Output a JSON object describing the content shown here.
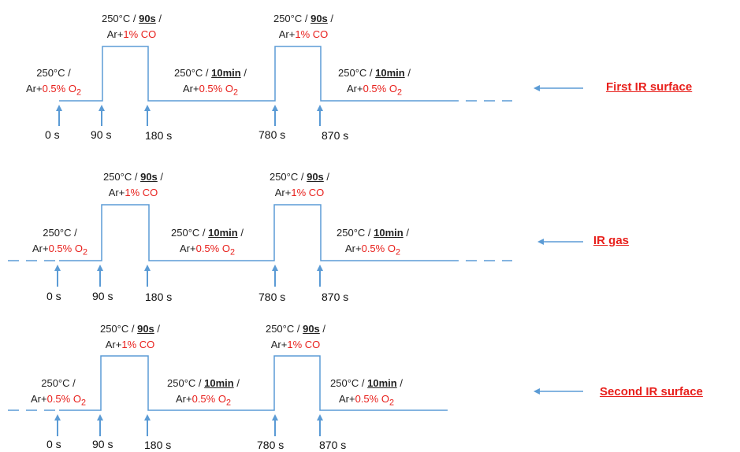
{
  "colors": {
    "line": "#5b9bd5",
    "red": "#e8201c",
    "text": "#222222"
  },
  "panels": [
    {
      "title": "First IR surface",
      "times": [
        "0 s",
        "90 s",
        "180 s",
        "780 s",
        "870 s"
      ],
      "steps": [
        {
          "l1a": "250°C /",
          "l1b": "",
          "l1c": "",
          "l2a": "Ar+",
          "l2b": "0.5% O",
          "sub": "2"
        },
        {
          "l1a": "250°C / ",
          "l1b": "90s",
          "l1c": " /",
          "l2a": "Ar+",
          "l2b": "1% CO",
          "sub": ""
        },
        {
          "l1a": "250°C / ",
          "l1b": "10min",
          "l1c": " /",
          "l2a": "Ar+",
          "l2b": "0.5% O",
          "sub": "2"
        },
        {
          "l1a": "250°C / ",
          "l1b": "90s",
          "l1c": " /",
          "l2a": "Ar+",
          "l2b": "1% CO",
          "sub": ""
        },
        {
          "l1a": "250°C / ",
          "l1b": "10min",
          "l1c": " /",
          "l2a": "Ar+",
          "l2b": "0.5% O",
          "sub": "2"
        }
      ]
    },
    {
      "title": "IR gas",
      "times": [
        "0 s",
        "90 s",
        "180 s",
        "780 s",
        "870 s"
      ],
      "steps": [
        {
          "l1a": "250°C /",
          "l1b": "",
          "l1c": "",
          "l2a": "Ar+",
          "l2b": "0.5% O",
          "sub": "2"
        },
        {
          "l1a": "250°C / ",
          "l1b": "90s",
          "l1c": " /",
          "l2a": "Ar+",
          "l2b": "1% CO",
          "sub": ""
        },
        {
          "l1a": "250°C / ",
          "l1b": "10min",
          "l1c": " /",
          "l2a": "Ar+",
          "l2b": "0.5% O",
          "sub": "2"
        },
        {
          "l1a": "250°C / ",
          "l1b": "90s",
          "l1c": " /",
          "l2a": "Ar+",
          "l2b": "1% CO",
          "sub": ""
        },
        {
          "l1a": "250°C / ",
          "l1b": "10min",
          "l1c": " /",
          "l2a": "Ar+",
          "l2b": "0.5% O",
          "sub": "2"
        }
      ]
    },
    {
      "title": "Second IR surface",
      "times": [
        "0 s",
        "90 s",
        "180 s",
        "780 s",
        "870 s"
      ],
      "steps": [
        {
          "l1a": "250°C /",
          "l1b": "",
          "l1c": "",
          "l2a": "Ar+",
          "l2b": "0.5% O",
          "sub": "2"
        },
        {
          "l1a": "250°C / ",
          "l1b": "90s",
          "l1c": " /",
          "l2a": "Ar+",
          "l2b": "1% CO",
          "sub": ""
        },
        {
          "l1a": "250°C / ",
          "l1b": "10min",
          "l1c": " /",
          "l2a": "Ar+",
          "l2b": "0.5% O",
          "sub": "2"
        },
        {
          "l1a": "250°C / ",
          "l1b": "90s",
          "l1c": " /",
          "l2a": "Ar+",
          "l2b": "1% CO",
          "sub": ""
        },
        {
          "l1a": "250°C / ",
          "l1b": "10min",
          "l1c": " /",
          "l2a": "Ar+",
          "l2b": "0.5% O",
          "sub": "2"
        }
      ]
    }
  ]
}
